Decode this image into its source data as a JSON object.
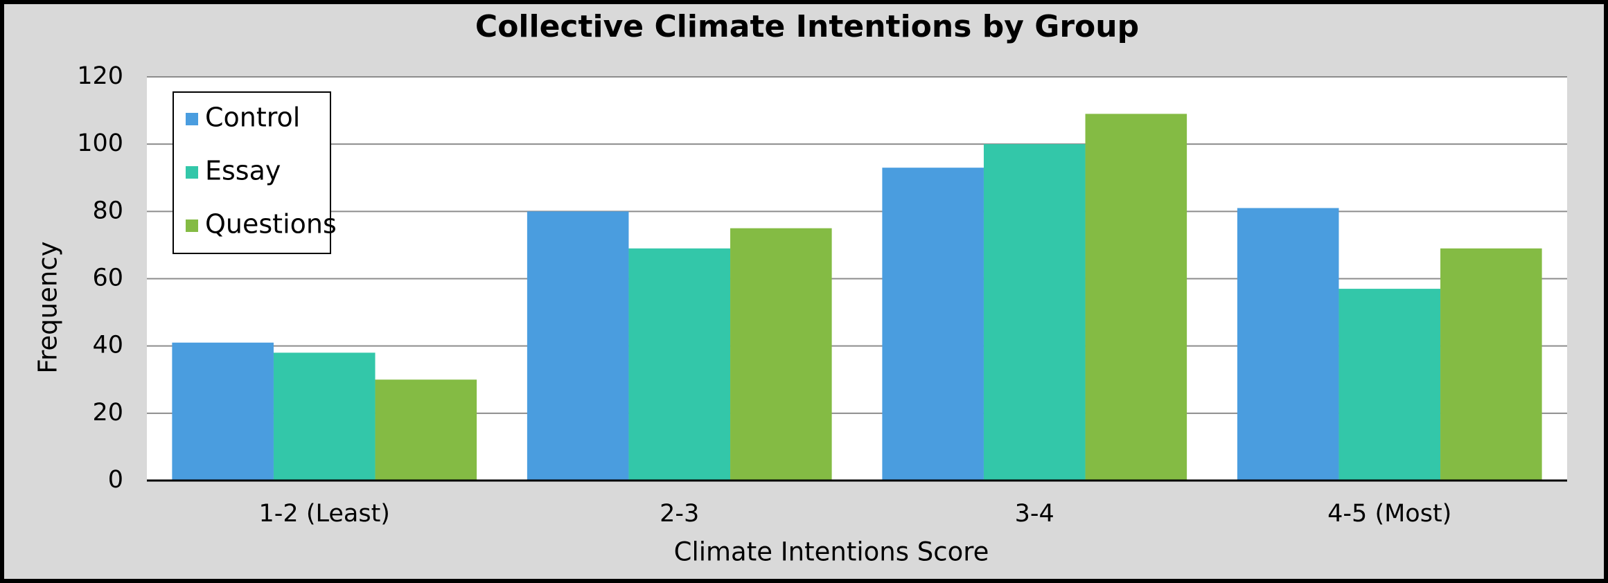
{
  "chart_data": {
    "type": "bar",
    "title": "Collective Climate Intentions by Group",
    "x_label": "Climate Intentions Score",
    "y_label": "Frequency",
    "categories": [
      "1-2 (Least)",
      "2-3",
      "3-4",
      "4-5 (Most)"
    ],
    "series": [
      {
        "name": "Control",
        "color": "#4a9ddf",
        "values": [
          41,
          80,
          93,
          81
        ]
      },
      {
        "name": "Essay",
        "color": "#33c7a9",
        "values": [
          38,
          69,
          100,
          57
        ]
      },
      {
        "name": "Questions",
        "color": "#84bb44",
        "values": [
          30,
          75,
          109,
          69
        ]
      }
    ],
    "ylim": [
      0,
      120
    ],
    "yticks": [
      0,
      20,
      40,
      60,
      80,
      100,
      120
    ],
    "grid": true,
    "legend": "upper left"
  }
}
